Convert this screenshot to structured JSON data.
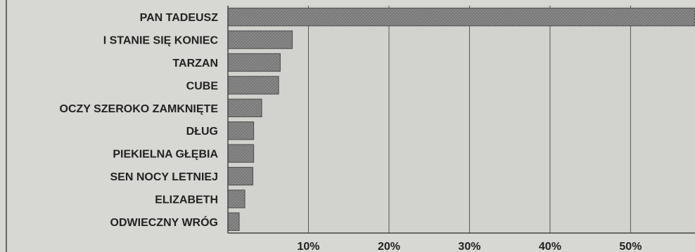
{
  "chart_data": {
    "type": "bar",
    "orientation": "horizontal",
    "title": "",
    "xlabel": "",
    "ylabel": "",
    "categories": [
      "PAN TADEUSZ",
      "I STANIE SIĘ KONIEC",
      "TARZAN",
      "CUBE",
      "OCZY SZEROKO ZAMKNIĘTE",
      "DŁUG",
      "PIEKIELNA GŁĘBIA",
      "SEN NOCY LETNIEJ",
      "ELIZABETH",
      "ODWIECZNY WRÓG"
    ],
    "values": [
      58,
      8,
      6.5,
      6.3,
      4.2,
      3.2,
      3.2,
      3.1,
      2.1,
      1.4
    ],
    "xlim": [
      0,
      58
    ],
    "ticks": [
      10,
      20,
      30,
      40,
      50
    ],
    "tick_labels": [
      "10%",
      "20%",
      "30%",
      "40%",
      "50%"
    ],
    "grid": "vertical",
    "colors": {
      "background": "#d7d7d3",
      "plot_background": "#d2d2ce",
      "bar_fill": "#7c7c7c",
      "bar_edge": "#4a4a4a",
      "text": "#222222",
      "grid": "#555555"
    }
  }
}
